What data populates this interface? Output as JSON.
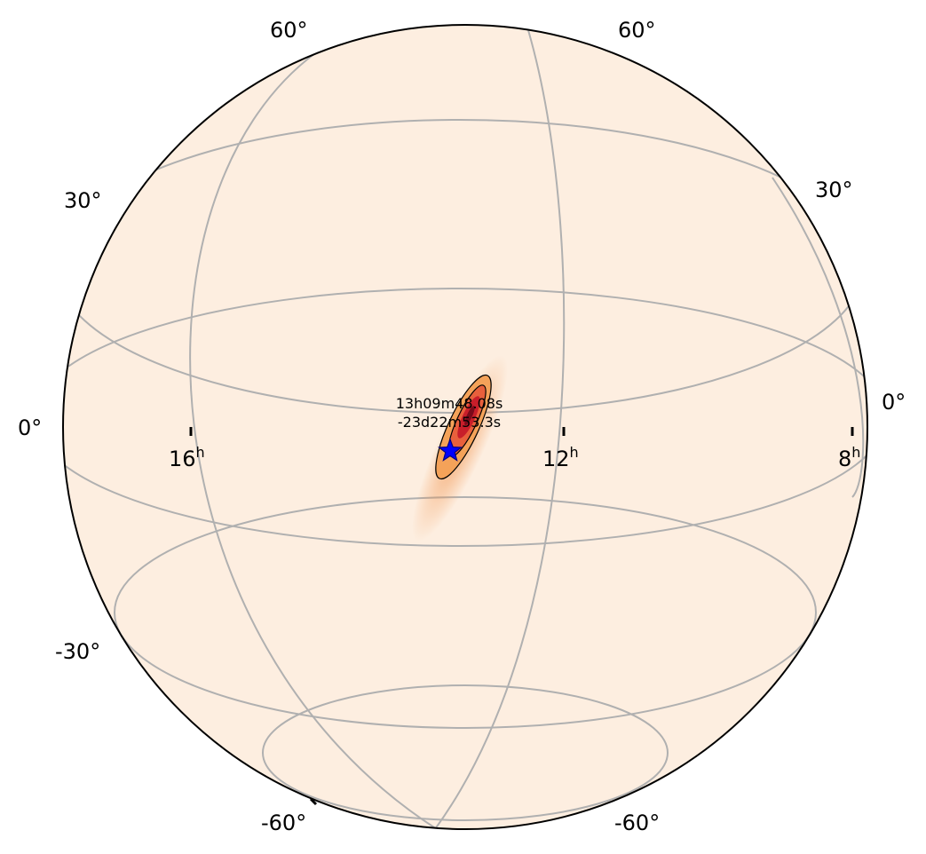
{
  "map": {
    "projection": "orthographic globe",
    "background_color": "#fdeee0",
    "grid_color": "#b0b0b0",
    "border_color": "#000000",
    "marker": {
      "shape": "star",
      "color": "#0000ff"
    }
  },
  "dec_labels": {
    "top_left": "60°",
    "top_right": "60°",
    "upper_left": "30°",
    "upper_right": "30°",
    "mid_left": "0°",
    "mid_right": "0°",
    "lower_left": "-30°",
    "bottom_left": "-60°",
    "bottom_right": "-60°"
  },
  "ra_labels": [
    {
      "value": "16",
      "unit": "h"
    },
    {
      "value": "12",
      "unit": "h"
    },
    {
      "value": "8",
      "unit": "h"
    }
  ],
  "annotation": {
    "line1": "13h09m48.08s",
    "line2": "-23d22m53.3s"
  },
  "skymap": {
    "contour_colors": [
      "#f4a259",
      "#e8603c",
      "#c81e2a",
      "#7a0a1a"
    ]
  }
}
